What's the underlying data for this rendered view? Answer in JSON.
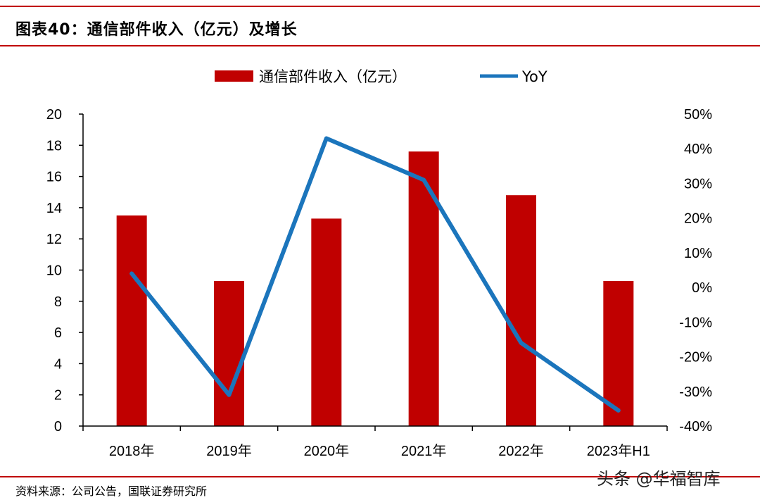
{
  "title": "图表40：通信部件收入（亿元）及增长",
  "source": "资料来源：公司公告，国联证券研究所",
  "watermark": "头条 @华福智库",
  "colors": {
    "bar": "#c00000",
    "line": "#1b75bc",
    "rule": "#c00000"
  },
  "chart_data": {
    "type": "bar",
    "categories": [
      "2018年",
      "2019年",
      "2020年",
      "2021年",
      "2022年",
      "2023年H1"
    ],
    "series": [
      {
        "name": "通信部件收入（亿元）",
        "type": "bar",
        "axis": "left",
        "values": [
          13.5,
          9.3,
          13.3,
          17.6,
          14.8,
          9.3
        ]
      },
      {
        "name": "YoY",
        "type": "line",
        "axis": "right",
        "values": [
          0.04,
          -0.31,
          0.43,
          0.31,
          -0.16,
          -0.355
        ]
      }
    ],
    "y_left": {
      "min": 0,
      "max": 20,
      "step": 2,
      "ticks": [
        "0",
        "2",
        "4",
        "6",
        "8",
        "10",
        "12",
        "14",
        "16",
        "18",
        "20"
      ]
    },
    "y_right": {
      "min": -0.4,
      "max": 0.5,
      "step": 0.1,
      "ticks": [
        "-40%",
        "-30%",
        "-20%",
        "-10%",
        "0%",
        "10%",
        "20%",
        "30%",
        "40%",
        "50%"
      ]
    },
    "legend_position": "top-center",
    "grid": false
  }
}
